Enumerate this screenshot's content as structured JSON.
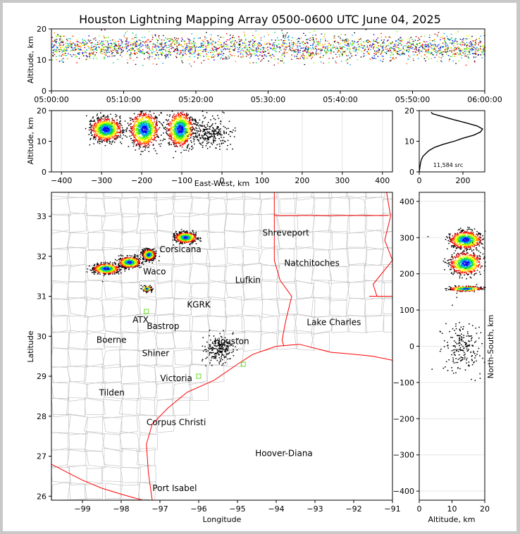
{
  "title": "Houston Lightning Mapping Array 0500-0600 UTC June 04, 2025",
  "colors": {
    "county": "#c4c4c4",
    "state": "#ff0000",
    "coast": "#ff0000",
    "tri": "#ff0000",
    "station": "#66dd22",
    "palette": [
      "#2222cc",
      "#0000ff",
      "#00a0ff",
      "#00cc66",
      "#66ff00",
      "#ffff00",
      "#ff8800",
      "#ff0000",
      "#8b0000",
      "#000000"
    ]
  },
  "chart_data": [
    {
      "id": "time-height",
      "type": "scatter",
      "xlabel": "",
      "ylabel": "Altitude, km",
      "xticks": [
        "05:00:00",
        "05:10:00",
        "05:20:00",
        "05:30:00",
        "05:40:00",
        "05:50:00",
        "06:00:00"
      ],
      "xlim_minutes": [
        0,
        60
      ],
      "ylim": [
        0,
        20
      ],
      "yticks": [
        0,
        10,
        20
      ],
      "band": {
        "altitude_km": [
          8,
          19
        ],
        "peak_altitude_km": 14,
        "time_minutes": [
          0,
          60
        ]
      }
    },
    {
      "id": "ew-altitude",
      "type": "scatter",
      "xlabel": "East-West, km",
      "ylabel": "Altitude, km",
      "xlim": [
        -425,
        425
      ],
      "ylim": [
        0,
        20
      ],
      "xticks": [
        -400,
        -300,
        -200,
        -100,
        0,
        100,
        200,
        300,
        400
      ],
      "yticks": [
        0,
        10,
        20
      ],
      "clusters": [
        {
          "x_km": -290,
          "altitude_km": 14,
          "spread_x": 30,
          "spread_alt": 3
        },
        {
          "x_km": -195,
          "altitude_km": 14,
          "spread_x": 28,
          "spread_alt": 4.5
        },
        {
          "x_km": -105,
          "altitude_km": 14,
          "spread_x": 26,
          "spread_alt": 4.5
        },
        {
          "x_km": -30,
          "altitude_km": 13,
          "spread_x": 45,
          "spread_alt": 4
        }
      ]
    },
    {
      "id": "altitude-histogram",
      "type": "line",
      "xlabel": "",
      "ylabel": "",
      "xlim": [
        0,
        300
      ],
      "ylim": [
        0,
        20
      ],
      "xticks": [
        0,
        200
      ],
      "yticks": [
        0,
        10,
        20
      ],
      "annotation": "11,584 src",
      "series": [
        {
          "altitude_km": [
            0,
            1,
            2,
            3,
            4,
            5,
            6,
            7,
            8,
            9,
            10,
            11,
            12,
            13,
            14,
            15,
            16,
            17,
            18,
            19,
            19.5
          ],
          "count": [
            0,
            2,
            4,
            6,
            10,
            16,
            30,
            45,
            70,
            110,
            160,
            200,
            250,
            280,
            290,
            265,
            215,
            160,
            110,
            60,
            55
          ]
        }
      ]
    },
    {
      "id": "plan-view",
      "type": "scatter",
      "xlabel": "Longitude",
      "ylabel": "Latitude",
      "xlim": [
        -99.8,
        -91
      ],
      "ylim": [
        25.9,
        33.6
      ],
      "xticks": [
        -99,
        -98,
        -97,
        -96,
        -95,
        -94,
        -93,
        -92,
        -91
      ],
      "yticks": [
        26,
        27,
        28,
        29,
        30,
        31,
        32,
        33
      ],
      "clusters": [
        {
          "lon": -98.4,
          "lat": 31.7,
          "spread_lon": 0.3,
          "spread_lat": 0.12
        },
        {
          "lon": -97.8,
          "lat": 31.86,
          "spread_lon": 0.25,
          "spread_lat": 0.12
        },
        {
          "lon": -97.3,
          "lat": 32.05,
          "spread_lon": 0.15,
          "spread_lat": 0.12
        },
        {
          "lon": -96.35,
          "lat": 32.48,
          "spread_lon": 0.25,
          "spread_lat": 0.12
        },
        {
          "lon": -97.35,
          "lat": 31.2,
          "spread_lon": 0.1,
          "spread_lat": 0.06
        },
        {
          "lon": -95.5,
          "lat": 29.7,
          "spread_lon": 0.35,
          "spread_lat": 0.3
        }
      ]
    },
    {
      "id": "ns-altitude",
      "type": "scatter",
      "xlabel": "Altitude, km",
      "ylabel": "North-South, km",
      "xlim": [
        0,
        20
      ],
      "ylim": [
        -425,
        425
      ],
      "xticks": [
        0,
        10,
        20
      ],
      "yticks": [
        -400,
        -300,
        -200,
        -100,
        0,
        100,
        200,
        300,
        400
      ],
      "clusters": [
        {
          "altitude_km": 14,
          "y_km": 295,
          "spread_alt": 4,
          "spread_y": 20
        },
        {
          "altitude_km": 14,
          "y_km": 230,
          "spread_alt": 4,
          "spread_y": 25
        },
        {
          "altitude_km": 14,
          "y_km": 160,
          "spread_alt": 4,
          "spread_y": 6
        },
        {
          "altitude_km": 13,
          "y_km": 0,
          "spread_alt": 5,
          "spread_y": 60
        }
      ]
    }
  ],
  "cities": [
    {
      "name": "Shreveport",
      "lon": -93.75,
      "lat": 32.52,
      "color": "#000000"
    },
    {
      "name": "Corsicana",
      "lon": -96.47,
      "lat": 32.1,
      "color": "#000000"
    },
    {
      "name": "Natchitoches",
      "lon": -93.08,
      "lat": 31.76,
      "color": "#000000"
    },
    {
      "name": "Waco",
      "lon": -97.14,
      "lat": 31.55,
      "color": "#000000"
    },
    {
      "name": "Lufkin",
      "lon": -94.73,
      "lat": 31.34,
      "color": "#000000"
    },
    {
      "name": "KGRK",
      "lon": -96.0,
      "lat": 30.72,
      "color": "#8b0000"
    },
    {
      "name": "ATX",
      "lon": -97.5,
      "lat": 30.34,
      "color": "#ff8800"
    },
    {
      "name": "Bastrop",
      "lon": -96.92,
      "lat": 30.18,
      "color": "#000000"
    },
    {
      "name": "Lake Charles",
      "lon": -92.51,
      "lat": 30.28,
      "color": "#000000"
    },
    {
      "name": "Boerne",
      "lon": -98.25,
      "lat": 29.84,
      "color": "#000000"
    },
    {
      "name": "Houston",
      "lon": -95.15,
      "lat": 29.8,
      "color": "#e0a020"
    },
    {
      "name": "Shiner",
      "lon": -97.11,
      "lat": 29.5,
      "color": "#000000"
    },
    {
      "name": "Victoria",
      "lon": -96.58,
      "lat": 28.88,
      "color": "#000000"
    },
    {
      "name": "Tilden",
      "lon": -98.24,
      "lat": 28.52,
      "color": "#000000"
    },
    {
      "name": "Corpus Christi",
      "lon": -96.58,
      "lat": 27.78,
      "color": "#000000"
    },
    {
      "name": "Hoover-Diana",
      "lon": -93.8,
      "lat": 27.0,
      "color": "#0000ff"
    },
    {
      "name": "Port Isabel",
      "lon": -96.62,
      "lat": 26.13,
      "color": "#000000"
    }
  ]
}
